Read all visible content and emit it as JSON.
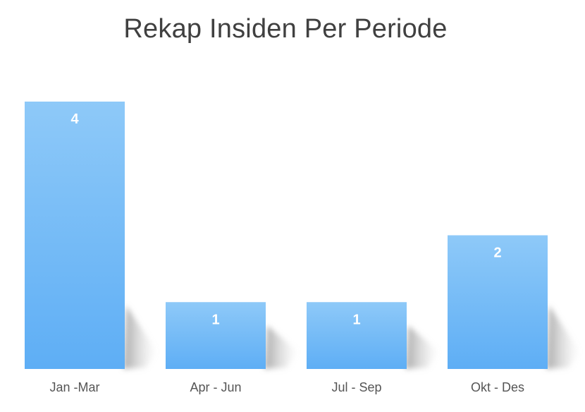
{
  "chart_data": {
    "type": "bar",
    "title": "Rekap Insiden Per Periode",
    "categories": [
      "Jan -Mar",
      "Apr - Jun",
      "Jul - Sep",
      "Okt - Des"
    ],
    "values": [
      4,
      1,
      1,
      2
    ],
    "data_labels": [
      "4",
      "1",
      "1",
      "2"
    ],
    "xlabel": "",
    "ylabel": "",
    "ylim": [
      0,
      4
    ],
    "grid": false,
    "legend": "none",
    "colors": {
      "bar_top": "#8ec9f8",
      "bar_bottom": "#5eaef5",
      "shadow": "#b0b0b0",
      "title": "#404040",
      "tick": "#555555"
    }
  }
}
